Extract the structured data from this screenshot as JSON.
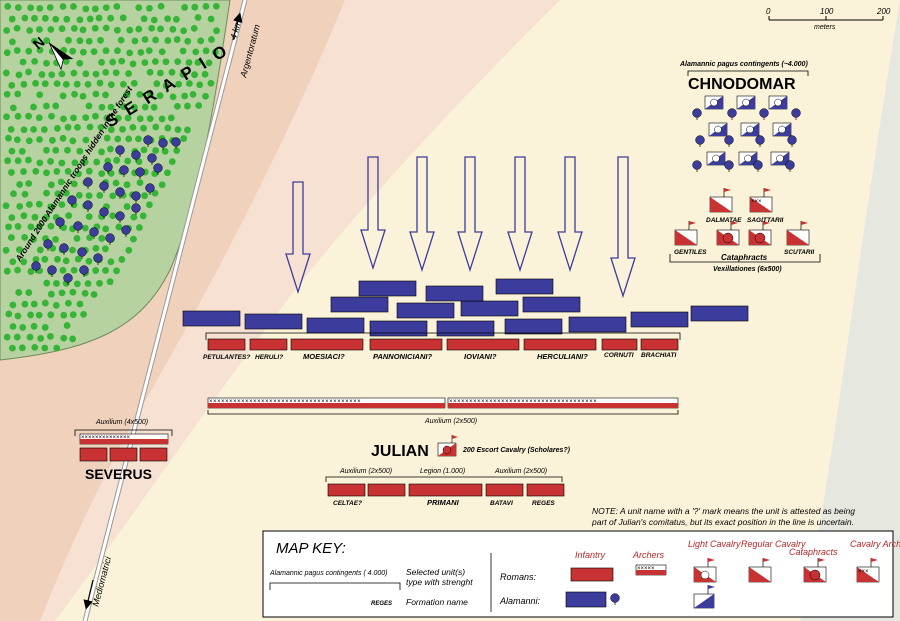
{
  "scale": {
    "ticks": [
      "0",
      "100",
      "200"
    ],
    "unit": "meters"
  },
  "labels": {
    "serapio": "S E R A P I O",
    "hidden": "Around 2000 Alamannic troops hidden in the forest",
    "road_north": "4 km",
    "road_north_place": "Argentoratum",
    "road_south": "Mediomatrici",
    "north": "N"
  },
  "alamanni": {
    "commander": "CHNODOMAR",
    "contingents_label": "Alamannic pagus contingents (~4.000)"
  },
  "vexillationes": {
    "units_top": [
      "DALMATAE",
      "SAGITTARII"
    ],
    "units_bottom": [
      "GENTILES",
      "Cataphracts",
      "SCUTARII"
    ],
    "caption": "Vexillationes (6x500)"
  },
  "front_line": {
    "units": [
      "PETULANTES?",
      "HERULI?",
      "MOESIACI?",
      "PANNONICIANI?",
      "IOVIANI?",
      "HERCULIANI?",
      "CORNUTI",
      "BRACHIATI"
    ]
  },
  "second_line": {
    "caption": "Auxilium (2x500)"
  },
  "severus": {
    "name": "SEVERUS",
    "caption": "Auxilium (4x500)"
  },
  "julian": {
    "name": "JULIAN",
    "escort": "200 Escort Cavalry (Scholares?)"
  },
  "reserve": {
    "left_caption": "Auxilium (2x500)",
    "center_caption": "Legion (1.000)",
    "right_caption": "Auxilium (2x500)",
    "units": [
      "CELTAE?",
      "PRIMANI",
      "BATAVI",
      "REGES"
    ]
  },
  "note": {
    "line1": "NOTE: A unit name with a '?' mark means the unit is attested as being",
    "line2": "part of Julian's comitatus, but its exact position in the line is uncertain."
  },
  "key": {
    "title": "MAP KEY:",
    "sample_label": "Alamannic pagus contingents (  4.000)",
    "sample_desc_1": "Selected unit(s)",
    "sample_desc_2": "type with strenght",
    "formation_sample": "REGES",
    "formation_desc": "Formation name",
    "columns": [
      "Infantry",
      "Archers",
      "Light Cavalry",
      "Regular Cavalry",
      "Cataphracts",
      "Cavalry Archers"
    ],
    "rows": [
      "Romans:",
      "Alamanni:"
    ]
  },
  "colors": {
    "roman": "#c83232",
    "alamanni": "#3c3c9c",
    "forest": "#b6d2a0",
    "tree": "#36b436",
    "terrain_outer": "#f0d2bc",
    "terrain_inner": "#f6e1d2",
    "plain": "#fbf3d9",
    "river_bank": "#e6e8df"
  }
}
